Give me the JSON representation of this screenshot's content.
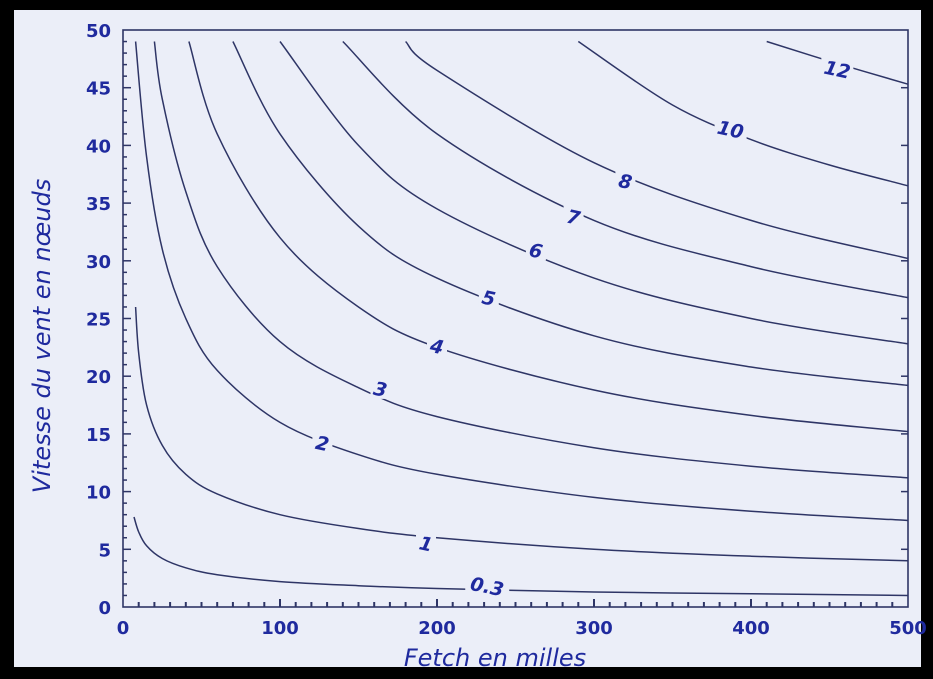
{
  "chart_data": {
    "type": "line",
    "title": "",
    "xlabel": "Fetch en milles",
    "ylabel": "Vitesse du vent en nœuds",
    "xlim": [
      0,
      500
    ],
    "ylim": [
      0,
      50
    ],
    "x_ticks": [
      "0",
      "100",
      "200",
      "300",
      "400",
      "500"
    ],
    "y_ticks": [
      "0",
      "5",
      "10",
      "15",
      "20",
      "25",
      "30",
      "35",
      "40",
      "45",
      "50"
    ],
    "grid": false,
    "colors": {
      "line": "#2e3566",
      "text": "#1f2a9e",
      "background": "#ebeef8",
      "frame": "#000000"
    },
    "series": [
      {
        "name": "0.3",
        "x": [
          7,
          10,
          15,
          25,
          40,
          60,
          100,
          150,
          200,
          300,
          400,
          500
        ],
        "y": [
          7.8,
          6.5,
          5.3,
          4.2,
          3.4,
          2.8,
          2.2,
          1.85,
          1.6,
          1.3,
          1.15,
          1.0
        ]
      },
      {
        "name": "1",
        "x": [
          8,
          10,
          15,
          25,
          40,
          60,
          100,
          150,
          200,
          300,
          400,
          500
        ],
        "y": [
          26,
          22,
          17.5,
          14,
          11.5,
          9.8,
          8.0,
          6.8,
          6.0,
          5.0,
          4.4,
          4.0
        ]
      },
      {
        "name": "2",
        "x": [
          8,
          15,
          25,
          40,
          60,
          100,
          150,
          200,
          300,
          400,
          500
        ],
        "y": [
          49,
          39,
          31,
          25,
          20.5,
          16,
          13.2,
          11.5,
          9.5,
          8.3,
          7.5
        ]
      },
      {
        "name": "3",
        "x": [
          20,
          25,
          40,
          60,
          100,
          150,
          200,
          300,
          400,
          500
        ],
        "y": [
          49,
          44,
          36,
          29.5,
          23,
          19,
          16.5,
          13.8,
          12.2,
          11.2
        ]
      },
      {
        "name": "4",
        "x": [
          42,
          60,
          100,
          150,
          200,
          300,
          400,
          500
        ],
        "y": [
          49,
          41,
          32,
          26,
          22.5,
          18.8,
          16.6,
          15.2
        ]
      },
      {
        "name": "5",
        "x": [
          70,
          100,
          150,
          200,
          300,
          400,
          500
        ],
        "y": [
          49,
          41,
          33,
          28.5,
          23.5,
          20.8,
          19.2
        ]
      },
      {
        "name": "6",
        "x": [
          100,
          150,
          200,
          300,
          400,
          500
        ],
        "y": [
          49,
          40,
          34.5,
          28.5,
          25,
          22.8
        ]
      },
      {
        "name": "7",
        "x": [
          140,
          200,
          300,
          400,
          500
        ],
        "y": [
          49,
          41,
          33.5,
          29.5,
          26.8
        ]
      },
      {
        "name": "8",
        "x": [
          180,
          200,
          300,
          400,
          500
        ],
        "y": [
          49,
          46.5,
          38.5,
          33.5,
          30.2
        ]
      },
      {
        "name": "10",
        "x": [
          290,
          350,
          400,
          450,
          500
        ],
        "y": [
          49,
          43.5,
          40.5,
          38.3,
          36.5
        ]
      },
      {
        "name": "12",
        "x": [
          410,
          450,
          500
        ],
        "y": [
          49,
          47.3,
          45.3
        ]
      }
    ],
    "annotations": [
      {
        "text": "0.3",
        "x": 232,
        "y": 1.8
      },
      {
        "text": "1",
        "x": 193,
        "y": 5.5
      },
      {
        "text": "2",
        "x": 127,
        "y": 14.2
      },
      {
        "text": "3",
        "x": 164,
        "y": 18.9
      },
      {
        "text": "4",
        "x": 200,
        "y": 22.6
      },
      {
        "text": "5",
        "x": 233,
        "y": 26.8
      },
      {
        "text": "6",
        "x": 263,
        "y": 30.9
      },
      {
        "text": "7",
        "x": 287,
        "y": 33.8
      },
      {
        "text": "8",
        "x": 320,
        "y": 36.9
      },
      {
        "text": "10",
        "x": 387,
        "y": 41.4
      },
      {
        "text": "12",
        "x": 455,
        "y": 46.6
      }
    ]
  }
}
